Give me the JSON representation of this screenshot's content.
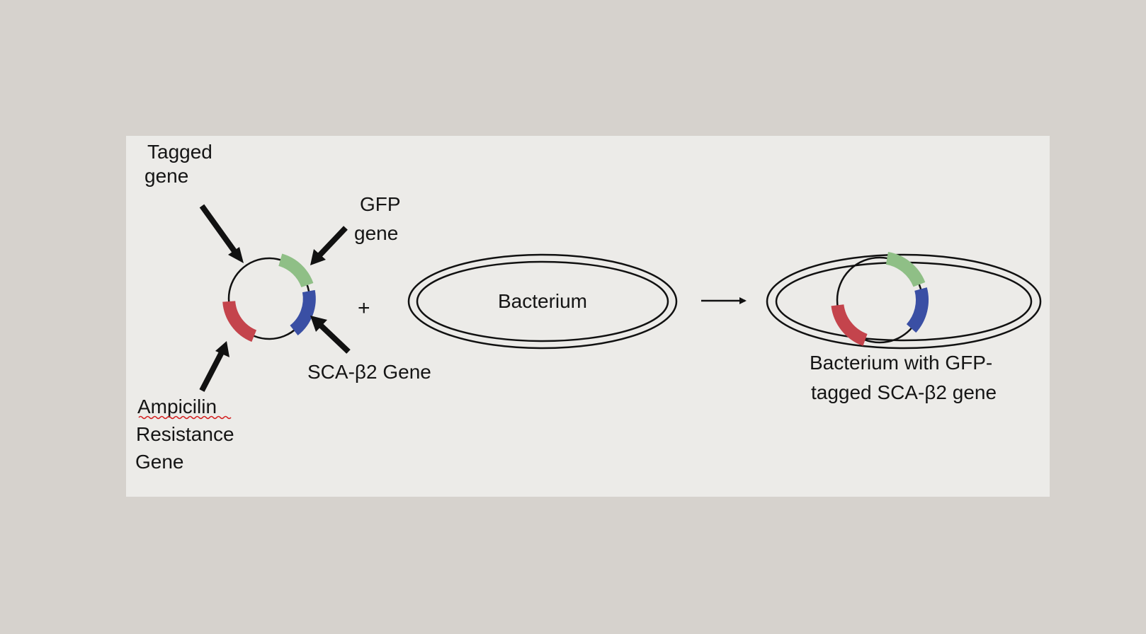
{
  "labels": {
    "tagged_gene": [
      "Tagged",
      "gene"
    ],
    "gfp_gene": [
      "GFP",
      "gene"
    ],
    "sca_gene": "SCA-β2 Gene",
    "ampicilin": [
      "Ampicilin",
      "Resistance",
      "Gene"
    ],
    "plus": "+",
    "bacterium": "Bacterium",
    "result": [
      "Bacterium with GFP-",
      "tagged SCA-β2 gene"
    ]
  },
  "colors": {
    "gfp_segment": "#8fbf86",
    "sca_segment": "#3a4fa4",
    "ampicilin_segment": "#c4444c",
    "spellcheck_underline": "#d42020",
    "ink": "#111111"
  }
}
